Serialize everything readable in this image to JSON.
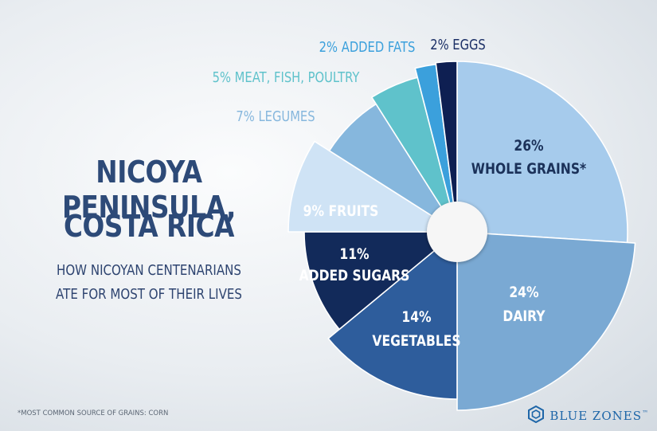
{
  "heading": {
    "line1": "NICOYA PENINSULA,",
    "line2": "COSTA RICA"
  },
  "subtitle": {
    "line1": "HOW NICOYAN CENTENARIANS",
    "line2": "ATE FOR MOST OF THEIR LIVES"
  },
  "footnote": "*MOST COMMON SOURCE OF GRAINS: CORN",
  "brand": {
    "name": "BLUE ZONES",
    "mark": "™",
    "icon": "blue-zones-logo-icon",
    "color": "#1e66a8"
  },
  "chart_data": {
    "type": "pie",
    "start_angle_deg": 0,
    "direction": "clockwise",
    "slices": [
      {
        "pct": "26%",
        "name": "WHOLE GRAINS*",
        "value": 26,
        "color": "#a6cbec",
        "text_color": "#1b3159",
        "label_position": "inside"
      },
      {
        "pct": "24%",
        "name": "DAIRY",
        "value": 24,
        "color": "#7aa9d3",
        "text_color": "#ffffff",
        "label_position": "inside"
      },
      {
        "pct": "14%",
        "name": "VEGETABLES",
        "value": 14,
        "color": "#2e5d9c",
        "text_color": "#ffffff",
        "label_position": "inside"
      },
      {
        "pct": "11%",
        "name": "ADDED SUGARS",
        "value": 11,
        "color": "#122a5a",
        "text_color": "#ffffff",
        "label_position": "inside"
      },
      {
        "pct": "9%",
        "name": "FRUITS",
        "value": 9,
        "color": "#cfe3f5",
        "text_color": "#ffffff",
        "label_position": "inside"
      },
      {
        "pct": "7%",
        "name": "LEGUMES",
        "value": 7,
        "color": "#86b7dd",
        "text_color": "#86b7dd",
        "label_position": "outside"
      },
      {
        "pct": "5%",
        "name": "MEAT, FISH, POULTRY",
        "value": 5,
        "color": "#5fc2cb",
        "text_color": "#5fc2cb",
        "label_position": "outside"
      },
      {
        "pct": "2%",
        "name": "ADDED FATS",
        "value": 2,
        "color": "#3ba0dc",
        "text_color": "#3ba0dc",
        "label_position": "outside"
      },
      {
        "pct": "2%",
        "name": "EGGS",
        "value": 2,
        "color": "#0e1f52",
        "text_color": "#1b2f66",
        "label_position": "outside"
      }
    ]
  }
}
